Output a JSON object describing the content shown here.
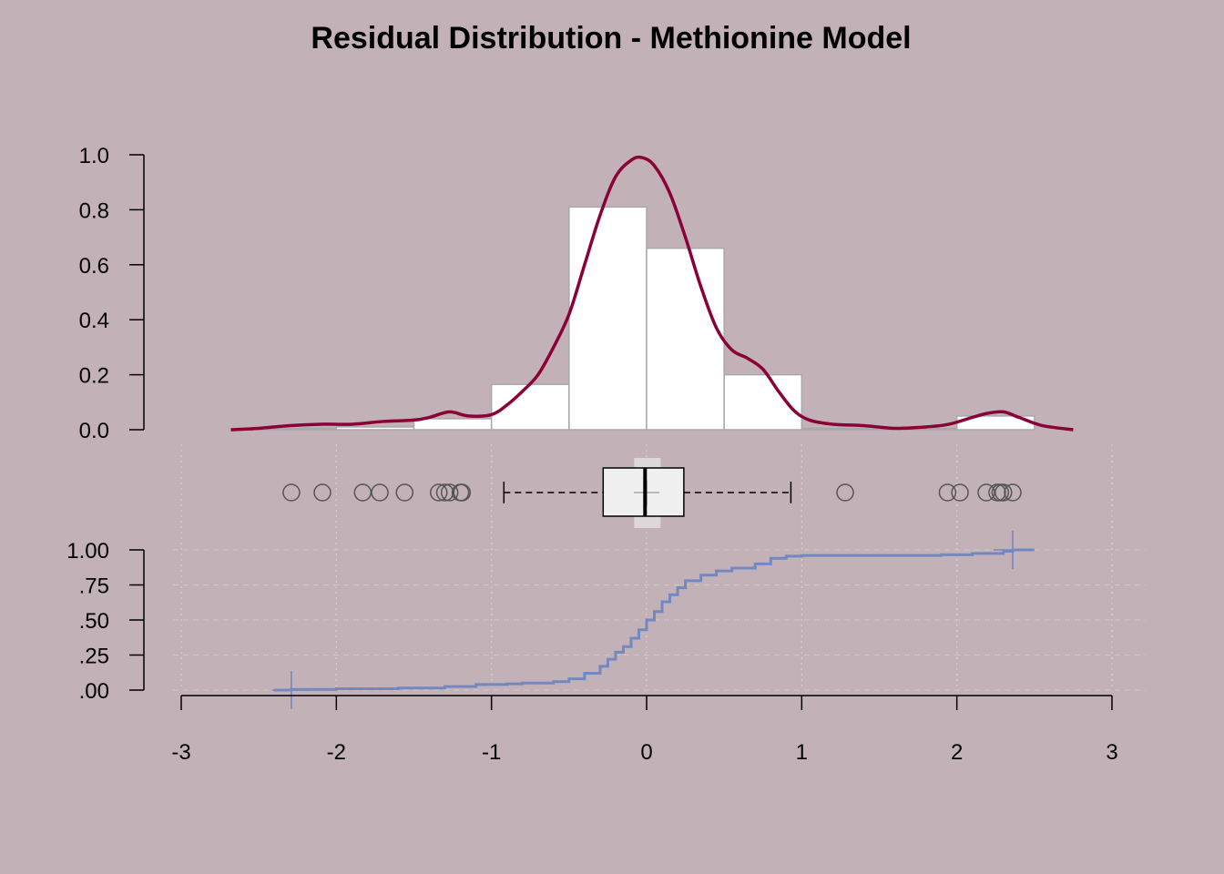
{
  "chart_data": {
    "type": "histogram+boxplot+ecdf",
    "title": "Residual Distribution - Methionine Model",
    "colors": {
      "background": "#c2b2b8",
      "density": "#8b0036",
      "ecdf": "#7388c0",
      "bar_fill": "#ffffff",
      "bar_stroke": "#a8a8a8",
      "box_fill": "#f0f0f0",
      "outlier_stroke": "#555555"
    },
    "x_axis": {
      "range": [
        -3,
        3
      ],
      "ticks": [
        -3,
        -2,
        -1,
        0,
        1,
        2,
        3
      ],
      "tick_labels": [
        "-3",
        "-2",
        "-1",
        "0",
        "1",
        "2",
        "3"
      ]
    },
    "histogram": {
      "y_ticks": [
        0,
        0.2,
        0.4,
        0.6,
        0.8,
        1.0
      ],
      "y_tick_labels": [
        "0.0",
        "0.2",
        "0.4",
        "0.6",
        "0.8",
        "1.0"
      ],
      "bins": [
        {
          "x0": -2.5,
          "x1": -2.0,
          "density": 0.005
        },
        {
          "x0": -2.0,
          "x1": -1.5,
          "density": 0.01
        },
        {
          "x0": -1.5,
          "x1": -1.0,
          "density": 0.04
        },
        {
          "x0": -1.0,
          "x1": -0.5,
          "density": 0.165
        },
        {
          "x0": -0.5,
          "x1": 0.0,
          "density": 0.81
        },
        {
          "x0": 0.0,
          "x1": 0.5,
          "density": 0.66
        },
        {
          "x0": 0.5,
          "x1": 1.0,
          "density": 0.2
        },
        {
          "x0": 1.0,
          "x1": 1.5,
          "density": 0.005
        },
        {
          "x0": 1.5,
          "x1": 2.0,
          "density": 0.005
        },
        {
          "x0": 2.0,
          "x1": 2.5,
          "density": 0.05
        }
      ],
      "density_curve": [
        [
          -2.68,
          0.0
        ],
        [
          -2.5,
          0.005
        ],
        [
          -2.3,
          0.015
        ],
        [
          -2.1,
          0.02
        ],
        [
          -1.9,
          0.02
        ],
        [
          -1.7,
          0.03
        ],
        [
          -1.5,
          0.035
        ],
        [
          -1.4,
          0.045
        ],
        [
          -1.27,
          0.065
        ],
        [
          -1.15,
          0.05
        ],
        [
          -1.0,
          0.055
        ],
        [
          -0.9,
          0.09
        ],
        [
          -0.8,
          0.14
        ],
        [
          -0.7,
          0.2
        ],
        [
          -0.6,
          0.3
        ],
        [
          -0.5,
          0.42
        ],
        [
          -0.4,
          0.6
        ],
        [
          -0.3,
          0.78
        ],
        [
          -0.2,
          0.92
        ],
        [
          -0.1,
          0.98
        ],
        [
          -0.03,
          0.99
        ],
        [
          0.05,
          0.96
        ],
        [
          0.15,
          0.86
        ],
        [
          0.25,
          0.7
        ],
        [
          0.35,
          0.52
        ],
        [
          0.45,
          0.37
        ],
        [
          0.55,
          0.29
        ],
        [
          0.65,
          0.26
        ],
        [
          0.75,
          0.22
        ],
        [
          0.85,
          0.14
        ],
        [
          0.95,
          0.07
        ],
        [
          1.05,
          0.035
        ],
        [
          1.2,
          0.02
        ],
        [
          1.4,
          0.015
        ],
        [
          1.6,
          0.005
        ],
        [
          1.8,
          0.01
        ],
        [
          1.95,
          0.02
        ],
        [
          2.1,
          0.045
        ],
        [
          2.2,
          0.06
        ],
        [
          2.3,
          0.065
        ],
        [
          2.4,
          0.045
        ],
        [
          2.55,
          0.015
        ],
        [
          2.75,
          0.0
        ]
      ]
    },
    "boxplot": {
      "q1": -0.28,
      "median": -0.01,
      "q3": 0.24,
      "whisker_low": -0.92,
      "whisker_high": 0.93,
      "mean": 0.0,
      "notch_low": -0.08,
      "notch_high": 0.09,
      "outliers": [
        -2.29,
        -2.09,
        -1.83,
        -1.72,
        -1.56,
        -1.34,
        -1.3,
        -1.27,
        -1.2,
        -1.19,
        1.28,
        1.94,
        2.02,
        2.19,
        2.26,
        2.28,
        2.3,
        2.36
      ]
    },
    "ecdf": {
      "y_ticks": [
        0,
        0.25,
        0.5,
        0.75,
        1.0
      ],
      "y_tick_labels": [
        ".00",
        ".25",
        ".50",
        ".75",
        "1.00"
      ],
      "points": [
        [
          -2.4,
          0.0
        ],
        [
          -2.29,
          0.005
        ],
        [
          -2.0,
          0.01
        ],
        [
          -1.6,
          0.015
        ],
        [
          -1.3,
          0.025
        ],
        [
          -1.1,
          0.04
        ],
        [
          -0.9,
          0.045
        ],
        [
          -0.8,
          0.05
        ],
        [
          -0.6,
          0.06
        ],
        [
          -0.5,
          0.08
        ],
        [
          -0.4,
          0.12
        ],
        [
          -0.3,
          0.17
        ],
        [
          -0.25,
          0.22
        ],
        [
          -0.2,
          0.27
        ],
        [
          -0.15,
          0.31
        ],
        [
          -0.1,
          0.37
        ],
        [
          -0.05,
          0.43
        ],
        [
          0.0,
          0.5
        ],
        [
          0.05,
          0.56
        ],
        [
          0.1,
          0.63
        ],
        [
          0.15,
          0.68
        ],
        [
          0.2,
          0.73
        ],
        [
          0.25,
          0.78
        ],
        [
          0.35,
          0.82
        ],
        [
          0.45,
          0.85
        ],
        [
          0.55,
          0.87
        ],
        [
          0.7,
          0.9
        ],
        [
          0.8,
          0.94
        ],
        [
          0.9,
          0.955
        ],
        [
          1.0,
          0.96
        ],
        [
          1.5,
          0.96
        ],
        [
          1.9,
          0.965
        ],
        [
          2.1,
          0.975
        ],
        [
          2.3,
          0.99
        ],
        [
          2.36,
          1.0
        ],
        [
          2.5,
          1.0
        ]
      ],
      "markers": [
        [
          -2.29,
          0.0
        ],
        [
          2.36,
          1.0
        ]
      ]
    }
  }
}
